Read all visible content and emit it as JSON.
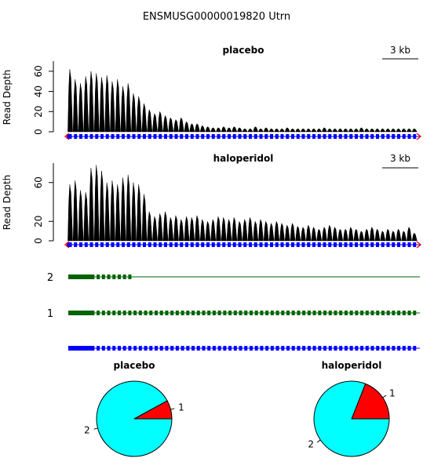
{
  "title": "ENSMUSG00000019820 Utrn",
  "colors": {
    "coverage": "#000000",
    "gene_model": "#0000ff",
    "isoform": "#006400",
    "pie_slice_1": "#ff0000",
    "pie_slice_2": "#00ffff",
    "strand_arrow": "#ff0000"
  },
  "chart_data": [
    {
      "type": "area",
      "panel": "coverage",
      "title": "placebo",
      "ylabel": "Read Depth",
      "ylim": [
        0,
        70
      ],
      "yticks": [
        "0",
        "20",
        "40",
        "60"
      ],
      "scale_bar_label": "3 kb",
      "exon_positions": [
        0.01,
        0.025,
        0.04,
        0.055,
        0.07,
        0.085,
        0.1,
        0.115,
        0.13,
        0.145,
        0.16,
        0.175,
        0.19,
        0.205,
        0.22,
        0.235,
        0.25,
        0.265,
        0.28,
        0.295,
        0.31,
        0.325,
        0.34,
        0.355,
        0.37,
        0.385,
        0.4,
        0.415,
        0.43,
        0.445,
        0.46,
        0.475,
        0.49,
        0.505,
        0.52,
        0.535,
        0.55,
        0.565,
        0.58,
        0.595,
        0.61,
        0.625,
        0.64,
        0.655,
        0.67,
        0.685,
        0.7,
        0.715,
        0.73,
        0.745,
        0.76,
        0.775,
        0.79,
        0.805,
        0.82,
        0.835,
        0.85,
        0.865,
        0.88,
        0.895,
        0.91,
        0.925,
        0.94,
        0.955,
        0.97,
        0.985
      ],
      "exon_peak_depths": [
        62,
        52,
        48,
        55,
        60,
        58,
        54,
        56,
        50,
        52,
        45,
        48,
        38,
        35,
        28,
        22,
        18,
        20,
        16,
        14,
        12,
        14,
        10,
        8,
        8,
        6,
        5,
        4,
        4,
        5,
        4,
        5,
        4,
        3,
        3,
        5,
        3,
        4,
        3,
        3,
        3,
        4,
        3,
        3,
        3,
        3,
        3,
        3,
        4,
        3,
        3,
        3,
        3,
        3,
        3,
        4,
        3,
        3,
        3,
        3,
        3,
        3,
        3,
        3,
        3,
        3
      ]
    },
    {
      "type": "area",
      "panel": "coverage",
      "title": "haloperidol",
      "ylabel": "Read Depth",
      "ylim": [
        0,
        80
      ],
      "yticks": [
        "0",
        "20",
        "60"
      ],
      "scale_bar_label": "3 kb",
      "exon_positions": [
        0.01,
        0.025,
        0.04,
        0.055,
        0.07,
        0.085,
        0.1,
        0.115,
        0.13,
        0.145,
        0.16,
        0.175,
        0.19,
        0.205,
        0.22,
        0.235,
        0.25,
        0.265,
        0.28,
        0.295,
        0.31,
        0.325,
        0.34,
        0.355,
        0.37,
        0.385,
        0.4,
        0.415,
        0.43,
        0.445,
        0.46,
        0.475,
        0.49,
        0.505,
        0.52,
        0.535,
        0.55,
        0.565,
        0.58,
        0.595,
        0.61,
        0.625,
        0.64,
        0.655,
        0.67,
        0.685,
        0.7,
        0.715,
        0.73,
        0.745,
        0.76,
        0.775,
        0.79,
        0.805,
        0.82,
        0.835,
        0.85,
        0.865,
        0.88,
        0.895,
        0.91,
        0.925,
        0.94,
        0.955,
        0.97,
        0.985
      ],
      "exon_peak_depths": [
        58,
        62,
        52,
        50,
        75,
        78,
        72,
        60,
        62,
        58,
        65,
        68,
        60,
        58,
        48,
        30,
        25,
        28,
        30,
        24,
        26,
        22,
        25,
        24,
        26,
        22,
        20,
        22,
        25,
        24,
        22,
        24,
        20,
        22,
        24,
        20,
        22,
        20,
        18,
        20,
        18,
        16,
        18,
        15,
        14,
        16,
        14,
        12,
        14,
        16,
        14,
        12,
        12,
        14,
        12,
        10,
        12,
        14,
        12,
        10,
        12,
        10,
        12,
        10,
        14,
        8
      ]
    },
    {
      "type": "isoform_track",
      "isoform_labels": [
        "2",
        "1"
      ],
      "isoform_extents": [
        0.35,
        1.0
      ]
    },
    {
      "type": "pie",
      "title": "placebo",
      "slices": [
        {
          "label": "1",
          "fraction": 0.08
        },
        {
          "label": "2",
          "fraction": 0.92
        }
      ]
    },
    {
      "type": "pie",
      "title": "haloperidol",
      "slices": [
        {
          "label": "1",
          "fraction": 0.19
        },
        {
          "label": "2",
          "fraction": 0.81
        }
      ]
    }
  ]
}
